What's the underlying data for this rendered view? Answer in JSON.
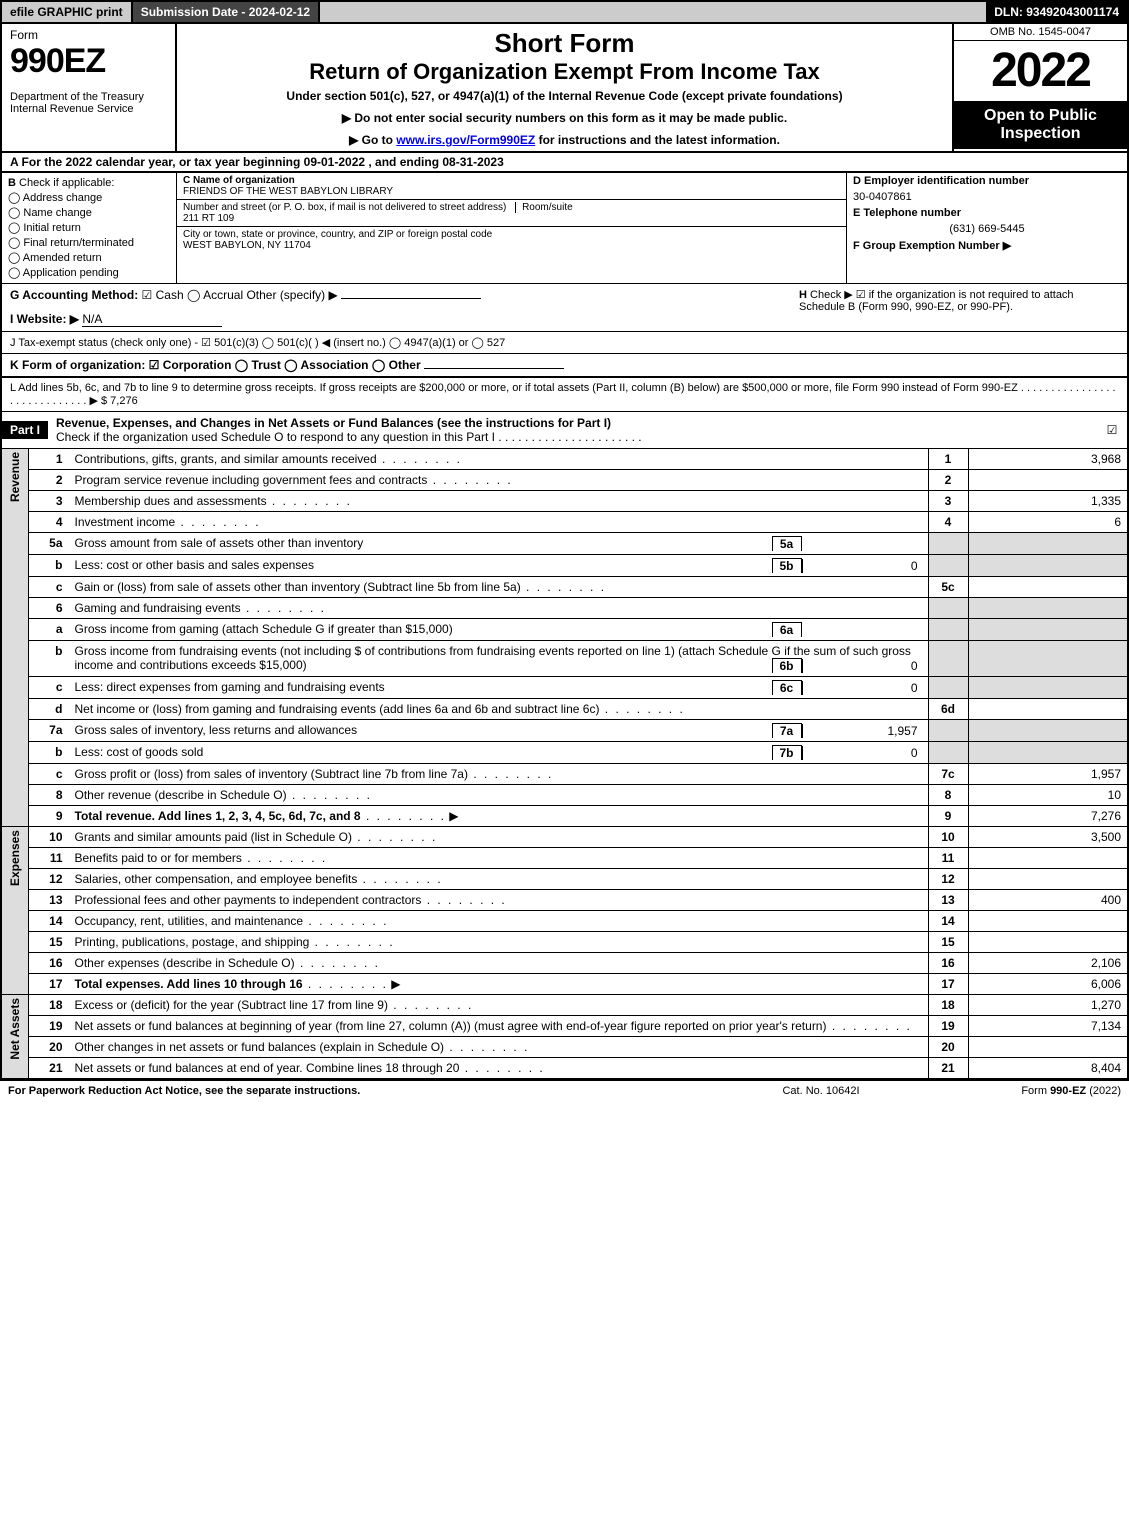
{
  "topbar": {
    "efile": "efile GRAPHIC print",
    "submission": "Submission Date - 2024-02-12",
    "dln": "DLN: 93492043001174"
  },
  "header": {
    "form_word": "Form",
    "form_number": "990EZ",
    "dept": "Department of the Treasury\nInternal Revenue Service",
    "title1": "Short Form",
    "title2": "Return of Organization Exempt From Income Tax",
    "subtitle": "Under section 501(c), 527, or 4947(a)(1) of the Internal Revenue Code (except private foundations)",
    "instr1": "▶ Do not enter social security numbers on this form as it may be made public.",
    "instr2_pre": "▶ Go to ",
    "instr2_link": "www.irs.gov/Form990EZ",
    "instr2_post": " for instructions and the latest information.",
    "omb": "OMB No. 1545-0047",
    "year": "2022",
    "inspection": "Open to Public Inspection"
  },
  "section_a": "A  For the 2022 calendar year, or tax year beginning 09-01-2022 , and ending 08-31-2023",
  "section_b": {
    "label": "B",
    "check_label": "Check if applicable:",
    "opts": [
      "Address change",
      "Name change",
      "Initial return",
      "Final return/terminated",
      "Amended return",
      "Application pending"
    ]
  },
  "section_c": {
    "name_label": "C Name of organization",
    "name": "FRIENDS OF THE WEST BABYLON LIBRARY",
    "street_label": "Number and street (or P. O. box, if mail is not delivered to street address)",
    "street": "211 RT 109",
    "room_label": "Room/suite",
    "city_label": "City or town, state or province, country, and ZIP or foreign postal code",
    "city": "WEST BABYLON, NY  11704"
  },
  "section_def": {
    "d_label": "D Employer identification number",
    "d_value": "30-0407861",
    "e_label": "E Telephone number",
    "e_value": "(631) 669-5445",
    "f_label": "F Group Exemption Number  ▶"
  },
  "section_g": {
    "label": "G Accounting Method:",
    "cash": "Cash",
    "accrual": "Accrual",
    "other": "Other (specify) ▶"
  },
  "section_h": {
    "label": "H",
    "text1": "Check ▶",
    "text2": "if the organization is not required to attach Schedule B (Form 990, 990-EZ, or 990-PF)."
  },
  "section_i": {
    "label": "I Website: ▶",
    "value": "N/A"
  },
  "section_j": "J Tax-exempt status (check only one) - ☑ 501(c)(3)  ◯ 501(c)(  ) ◀ (insert no.)  ◯ 4947(a)(1) or  ◯ 527",
  "section_k": "K Form of organization:   ☑ Corporation   ◯ Trust   ◯ Association   ◯ Other",
  "section_l": {
    "text": "L Add lines 5b, 6c, and 7b to line 9 to determine gross receipts. If gross receipts are $200,000 or more, or if total assets (Part II, column (B) below) are $500,000 or more, file Form 990 instead of Form 990-EZ  .  .  .  .  .  .  .  .  .  .  .  .  .  .  .  .  .  .  .  .  .  .  .  .  .  .  .  .  .  ▶ $",
    "value": "7,276"
  },
  "part1": {
    "label": "Part I",
    "title": "Revenue, Expenses, and Changes in Net Assets or Fund Balances (see the instructions for Part I)",
    "check_note": "Check if the organization used Schedule O to respond to any question in this Part I  .  .  .  .  .  .  .  .  .  .  .  .  .  .  .  .  .  .  .  .  .  ."
  },
  "lines": {
    "revenue": [
      {
        "n": "1",
        "desc": "Contributions, gifts, grants, and similar amounts received",
        "rn": "1",
        "rv": "3,968"
      },
      {
        "n": "2",
        "desc": "Program service revenue including government fees and contracts",
        "rn": "2",
        "rv": ""
      },
      {
        "n": "3",
        "desc": "Membership dues and assessments",
        "rn": "3",
        "rv": "1,335"
      },
      {
        "n": "4",
        "desc": "Investment income",
        "rn": "4",
        "rv": "6"
      },
      {
        "n": "5a",
        "desc": "Gross amount from sale of assets other than inventory",
        "mini_n": "5a",
        "mini_v": "",
        "shade": true
      },
      {
        "n": "b",
        "desc": "Less: cost or other basis and sales expenses",
        "mini_n": "5b",
        "mini_v": "0",
        "shade": true
      },
      {
        "n": "c",
        "desc": "Gain or (loss) from sale of assets other than inventory (Subtract line 5b from line 5a)",
        "rn": "5c",
        "rv": ""
      },
      {
        "n": "6",
        "desc": "Gaming and fundraising events",
        "shade": true
      },
      {
        "n": "a",
        "desc": "Gross income from gaming (attach Schedule G if greater than $15,000)",
        "mini_n": "6a",
        "mini_v": "",
        "shade": true
      },
      {
        "n": "b",
        "desc": "Gross income from fundraising events (not including $                     of contributions from fundraising events reported on line 1) (attach Schedule G if the sum of such gross income and contributions exceeds $15,000)",
        "mini_n": "6b",
        "mini_v": "0",
        "shade": true
      },
      {
        "n": "c",
        "desc": "Less: direct expenses from gaming and fundraising events",
        "mini_n": "6c",
        "mini_v": "0",
        "shade": true
      },
      {
        "n": "d",
        "desc": "Net income or (loss) from gaming and fundraising events (add lines 6a and 6b and subtract line 6c)",
        "rn": "6d",
        "rv": ""
      },
      {
        "n": "7a",
        "desc": "Gross sales of inventory, less returns and allowances",
        "mini_n": "7a",
        "mini_v": "1,957",
        "shade": true
      },
      {
        "n": "b",
        "desc": "Less: cost of goods sold",
        "mini_n": "7b",
        "mini_v": "0",
        "shade": true
      },
      {
        "n": "c",
        "desc": "Gross profit or (loss) from sales of inventory (Subtract line 7b from line 7a)",
        "rn": "7c",
        "rv": "1,957"
      },
      {
        "n": "8",
        "desc": "Other revenue (describe in Schedule O)",
        "rn": "8",
        "rv": "10"
      },
      {
        "n": "9",
        "desc": "Total revenue. Add lines 1, 2, 3, 4, 5c, 6d, 7c, and 8",
        "bold": true,
        "arrow": true,
        "rn": "9",
        "rv": "7,276"
      }
    ],
    "expenses": [
      {
        "n": "10",
        "desc": "Grants and similar amounts paid (list in Schedule O)",
        "rn": "10",
        "rv": "3,500"
      },
      {
        "n": "11",
        "desc": "Benefits paid to or for members",
        "rn": "11",
        "rv": ""
      },
      {
        "n": "12",
        "desc": "Salaries, other compensation, and employee benefits",
        "rn": "12",
        "rv": ""
      },
      {
        "n": "13",
        "desc": "Professional fees and other payments to independent contractors",
        "rn": "13",
        "rv": "400"
      },
      {
        "n": "14",
        "desc": "Occupancy, rent, utilities, and maintenance",
        "rn": "14",
        "rv": ""
      },
      {
        "n": "15",
        "desc": "Printing, publications, postage, and shipping",
        "rn": "15",
        "rv": ""
      },
      {
        "n": "16",
        "desc": "Other expenses (describe in Schedule O)",
        "rn": "16",
        "rv": "2,106"
      },
      {
        "n": "17",
        "desc": "Total expenses. Add lines 10 through 16",
        "bold": true,
        "arrow": true,
        "rn": "17",
        "rv": "6,006"
      }
    ],
    "netassets": [
      {
        "n": "18",
        "desc": "Excess or (deficit) for the year (Subtract line 17 from line 9)",
        "rn": "18",
        "rv": "1,270"
      },
      {
        "n": "19",
        "desc": "Net assets or fund balances at beginning of year (from line 27, column (A)) (must agree with end-of-year figure reported on prior year's return)",
        "rn": "19",
        "rv": "7,134"
      },
      {
        "n": "20",
        "desc": "Other changes in net assets or fund balances (explain in Schedule O)",
        "rn": "20",
        "rv": ""
      },
      {
        "n": "21",
        "desc": "Net assets or fund balances at end of year. Combine lines 18 through 20",
        "rn": "21",
        "rv": "8,404"
      }
    ]
  },
  "vtabs": {
    "revenue": "Revenue",
    "expenses": "Expenses",
    "netassets": "Net Assets"
  },
  "footer": {
    "f1": "For Paperwork Reduction Act Notice, see the separate instructions.",
    "f2": "Cat. No. 10642I",
    "f3": "Form 990-EZ (2022)"
  }
}
